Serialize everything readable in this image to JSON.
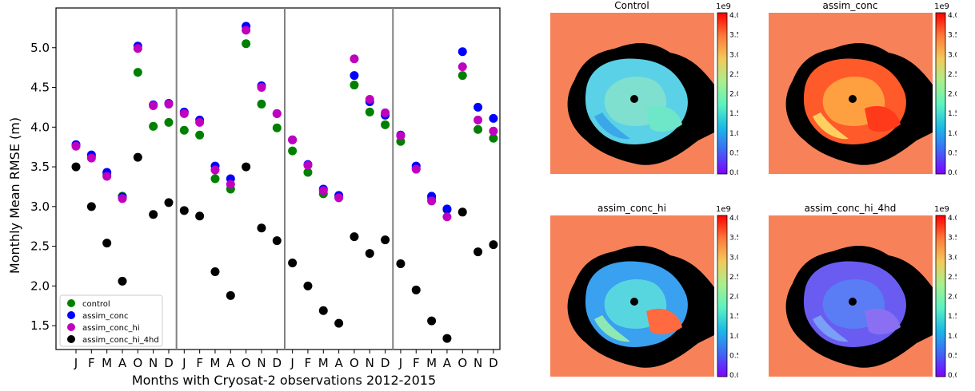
{
  "chart_data": [
    {
      "type": "scatter",
      "title": "",
      "xlabel": "Months with Cryosat-2 observations 2012-2015",
      "ylabel": "Monthly Mean RMSE (m)",
      "ylim": [
        1.2,
        5.5
      ],
      "yticks": [
        "1.5",
        "2.0",
        "2.5",
        "3.0",
        "3.5",
        "4.0",
        "4.5",
        "5.0"
      ],
      "categories": [
        "J",
        "F",
        "M",
        "A",
        "O",
        "N",
        "D",
        "J",
        "F",
        "M",
        "A",
        "O",
        "N",
        "D",
        "J",
        "F",
        "M",
        "A",
        "O",
        "N",
        "D",
        "J",
        "F",
        "M",
        "A",
        "O",
        "N",
        "D"
      ],
      "grid": false,
      "legend_position": "lower-left",
      "season_dividers_after_index": [
        6,
        13,
        20
      ],
      "series": [
        {
          "name": "control",
          "color": "#008000",
          "values": [
            3.77,
            3.63,
            3.4,
            3.13,
            4.69,
            4.01,
            4.06,
            3.96,
            3.9,
            3.35,
            3.22,
            5.05,
            4.29,
            3.99,
            3.7,
            3.43,
            3.16,
            3.12,
            4.53,
            4.19,
            4.03,
            3.82,
            3.48,
            3.1,
            2.96,
            4.65,
            3.97,
            3.86
          ]
        },
        {
          "name": "assim_conc",
          "color": "#0000ff",
          "values": [
            3.78,
            3.65,
            3.43,
            3.12,
            5.02,
            4.28,
            4.3,
            4.19,
            4.09,
            3.51,
            3.35,
            5.27,
            4.52,
            4.17,
            3.84,
            3.53,
            3.22,
            3.14,
            4.65,
            4.32,
            4.15,
            3.9,
            3.51,
            3.13,
            2.97,
            4.95,
            4.25,
            4.11
          ]
        },
        {
          "name": "assim_conc_hi",
          "color": "#bf00bf",
          "values": [
            3.76,
            3.61,
            3.38,
            3.1,
            4.99,
            4.27,
            4.29,
            4.17,
            4.06,
            3.46,
            3.28,
            5.22,
            4.5,
            4.17,
            3.84,
            3.52,
            3.2,
            3.11,
            4.86,
            4.35,
            4.18,
            3.89,
            3.47,
            3.07,
            2.87,
            4.76,
            4.09,
            3.95
          ]
        },
        {
          "name": "assim_conc_hi_4hd",
          "color": "#000000",
          "values": [
            3.5,
            3.0,
            2.54,
            2.06,
            3.62,
            2.9,
            3.05,
            2.95,
            2.88,
            2.18,
            1.88,
            3.5,
            2.73,
            2.57,
            2.29,
            2.0,
            1.69,
            1.53,
            2.62,
            2.41,
            2.58,
            2.28,
            1.95,
            1.56,
            1.34,
            2.93,
            2.43,
            2.52
          ]
        }
      ]
    },
    {
      "type": "heatmap",
      "title": "Control",
      "colorbar_ticks": [
        "0.0",
        "0.5",
        "1.0",
        "1.5",
        "2.0",
        "2.5",
        "3.0",
        "3.5",
        "4.0"
      ],
      "colorbar_exponent": "1e9"
    },
    {
      "type": "heatmap",
      "title": "assim_conc",
      "colorbar_ticks": [
        "0.0",
        "0.5",
        "1.0",
        "1.5",
        "2.0",
        "2.5",
        "3.0",
        "3.5",
        "4.0"
      ],
      "colorbar_exponent": "1e9"
    },
    {
      "type": "heatmap",
      "title": "assim_conc_hi",
      "colorbar_ticks": [
        "0.0",
        "0.5",
        "1.0",
        "1.5",
        "2.0",
        "2.5",
        "3.0",
        "3.5",
        "4.0"
      ],
      "colorbar_exponent": "1e9"
    },
    {
      "type": "heatmap",
      "title": "assim_conc_hi_4hd",
      "colorbar_ticks": [
        "0.0",
        "0.5",
        "1.0",
        "1.5",
        "2.0",
        "2.5",
        "3.0",
        "3.5",
        "4.0"
      ],
      "colorbar_exponent": "1e9"
    }
  ],
  "colors": {
    "land": "#f7825a",
    "ocean_mask": "#000000",
    "colorbar_stops": [
      "#7f00ff",
      "#4166f5",
      "#1bb8e8",
      "#5cf2c0",
      "#a8f08c",
      "#f3c95a",
      "#ff7a3a",
      "#ff0000"
    ]
  }
}
